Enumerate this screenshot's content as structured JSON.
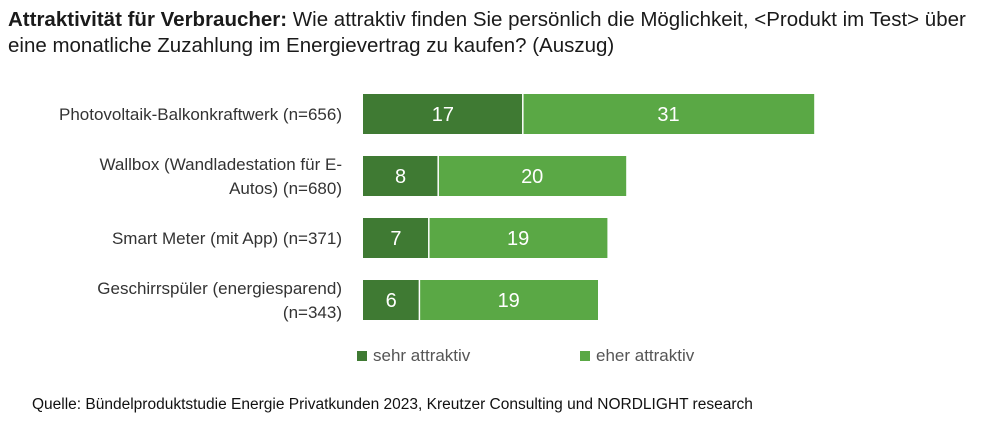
{
  "header": {
    "title_bold": "Attraktivität für Verbraucher:",
    "title_rest": " Wie attraktiv finden Sie persönlich die Möglichkeit, <Produkt im Test> über eine monatliche Zuzahlung im Energievertrag zu kaufen? (Auszug)"
  },
  "footer": {
    "source": "Quelle: Bündelproduktstudie Energie Privatkunden 2023, Kreutzer Consulting und NORDLIGHT research"
  },
  "chart_data": {
    "type": "bar",
    "orientation": "horizontal",
    "stacked": true,
    "categories": [
      [
        "Photovoltaik-Balkonkraftwerk (n=656)"
      ],
      [
        "Wallbox (Wandladestation für E-",
        "Autos) (n=680)"
      ],
      [
        "Smart Meter (mit App) (n=371)"
      ],
      [
        "Geschirrspüler (energiesparend)",
        "(n=343)"
      ]
    ],
    "series": [
      {
        "name": "sehr attraktiv",
        "color": "#3f7a33",
        "values": [
          17,
          8,
          7,
          6
        ]
      },
      {
        "name": "eher attraktiv",
        "color": "#5aa845",
        "values": [
          31,
          20,
          19,
          19
        ]
      }
    ],
    "xlim": [
      0,
      48
    ],
    "grid": false,
    "legend_position": "bottom-center"
  }
}
